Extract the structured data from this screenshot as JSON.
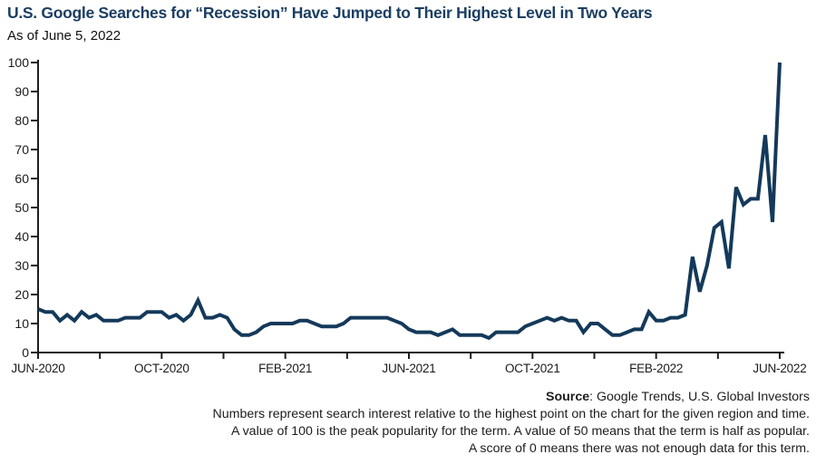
{
  "header": {
    "title": "U.S. Google Searches for “Recession” Have Jumped to Their Highest Level in Two Years",
    "subtitle": "As of June 5, 2022"
  },
  "chart_data": {
    "type": "line",
    "title": "U.S. Google Searches for “Recession” Have Jumped to Their Highest Level in Two Years",
    "as_of": "As of June 5, 2022",
    "x_unit": "weekly data, Jun 2020 through Jun 5 2022",
    "x_tick_labels": [
      "JUN-2020",
      "OCT-2020",
      "FEB-2021",
      "JUN-2021",
      "OCT-2021",
      "FEB-2022",
      "JUN-2022"
    ],
    "y_ticks": [
      0,
      10,
      20,
      30,
      40,
      50,
      60,
      70,
      80,
      90,
      100
    ],
    "ylim": [
      0,
      100
    ],
    "grid": false,
    "legend_position": "none",
    "line_color": "#14395A",
    "axis_color": "#1D1D1B",
    "series": [
      {
        "name": "Search interest",
        "values": [
          15,
          14,
          14,
          11,
          13,
          11,
          14,
          12,
          13,
          11,
          11,
          11,
          12,
          12,
          12,
          14,
          14,
          14,
          12,
          13,
          11,
          13,
          18,
          12,
          12,
          13,
          12,
          8,
          6,
          6,
          7,
          9,
          10,
          10,
          10,
          10,
          11,
          11,
          10,
          9,
          9,
          9,
          10,
          12,
          12,
          12,
          12,
          12,
          12,
          11,
          10,
          8,
          7,
          7,
          7,
          6,
          7,
          8,
          6,
          6,
          6,
          6,
          5,
          7,
          7,
          7,
          7,
          9,
          10,
          11,
          12,
          11,
          12,
          11,
          11,
          7,
          10,
          10,
          8,
          6,
          6,
          7,
          8,
          8,
          14,
          11,
          11,
          12,
          12,
          13,
          33,
          21,
          30,
          43,
          45,
          29,
          57,
          51,
          53,
          53,
          75,
          45,
          100
        ]
      }
    ]
  },
  "footer": {
    "source_label": "Source",
    "source_text": ": Google Trends, U.S. Global Investors",
    "notes": [
      "Numbers represent search interest relative to the highest point on the chart for the given region and time.",
      "A value of 100 is the peak popularity for the term. A value of 50 means that the term is half as popular.",
      "A score of 0 means there was not enough data for this term."
    ]
  }
}
